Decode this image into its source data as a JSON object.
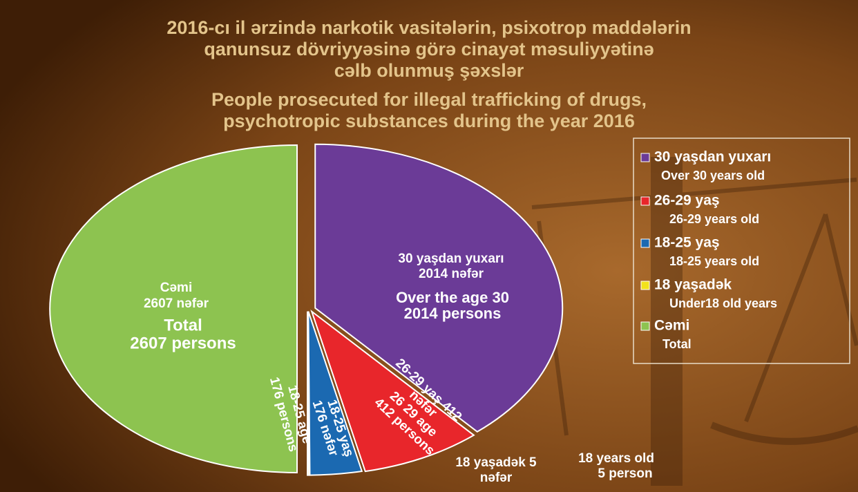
{
  "chart_data": {
    "type": "pie",
    "title": [
      "2016-cı il ərzində narkotik vasitələrin, psixotrop maddələrin",
      "qanunsuz dövriyyəsinə görə cinayət məsuliyyətinə",
      "cəlb olunmuş şəxslər"
    ],
    "subtitle": [
      "People prosecuted for illegal trafficking of drugs,",
      "psychotropic substances during the year 2016"
    ],
    "categories": [
      "30 yaşdan yuxarı",
      "26-29 yaş",
      "18-25 yaş",
      "18 yaşadək",
      "Cəmi"
    ],
    "categories_en": [
      "Over 30 years old",
      "26-29 years old",
      "18-25 years old",
      "Under18 old years",
      "Total"
    ],
    "values": [
      2014,
      412,
      176,
      5,
      2607
    ],
    "colors": [
      "#6b3b97",
      "#e8262b",
      "#1b69b1",
      "#f2e21c",
      "#8dc350"
    ],
    "value_labels": [
      [
        "30 yaşdan yuxarı",
        "2014 nəfər",
        "Over the age 30",
        "2014 persons"
      ],
      [
        "26-29 yaş 412",
        "nəfər",
        "26 29 age",
        "412 persons"
      ],
      [
        "18-25 yaş",
        "176 nəfər",
        "18-25 age",
        "176 persons"
      ],
      [
        "18 yaşadək 5",
        "nəfər",
        "18 years old",
        "5 person"
      ],
      [
        "Cəmi",
        "2607 nəfər",
        "Total",
        "2607 persons"
      ]
    ],
    "legend": "right"
  }
}
